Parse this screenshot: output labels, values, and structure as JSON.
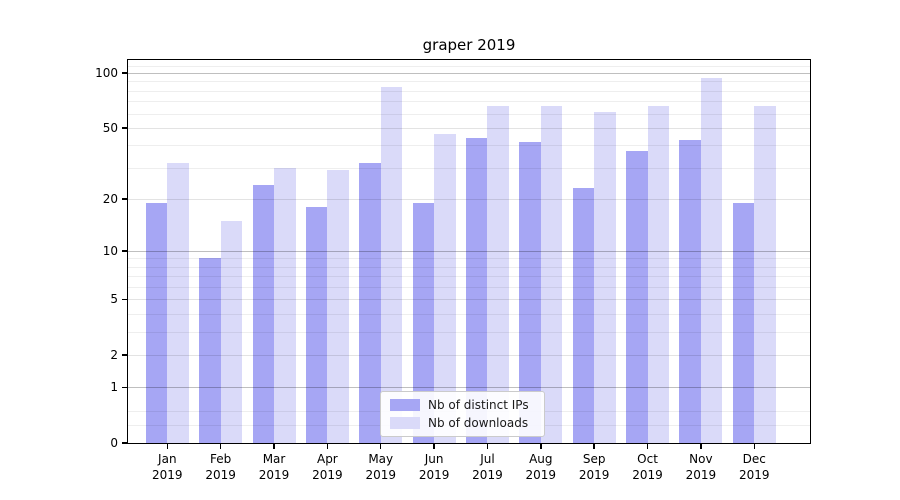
{
  "title": "graper 2019",
  "chart_data": {
    "type": "bar",
    "title": "graper 2019",
    "xlabel": "",
    "ylabel": "",
    "y_scale": "log1p",
    "ylim": [
      0,
      118
    ],
    "grid": true,
    "legend_position": "lower center",
    "y_ticks": [
      0,
      1,
      2,
      5,
      10,
      20,
      50,
      100
    ],
    "y_minor_gridlines": [
      0.25,
      0.5,
      3,
      4,
      6,
      7,
      8,
      9,
      30,
      40,
      60,
      70,
      80,
      90,
      110
    ],
    "categories": [
      "Jan",
      "Feb",
      "Mar",
      "Apr",
      "May",
      "Jun",
      "Jul",
      "Aug",
      "Sep",
      "Oct",
      "Nov",
      "Dec"
    ],
    "year": "2019",
    "series": [
      {
        "name": "Nb of distinct IPs",
        "color": "#a6a6f4",
        "values": [
          19,
          9,
          24,
          18,
          32,
          19,
          44,
          42,
          23,
          37,
          43,
          19
        ]
      },
      {
        "name": "Nb of downloads",
        "color": "#dadaf9",
        "values": [
          32,
          15,
          30,
          29,
          84,
          46,
          66,
          66,
          61,
          66,
          94,
          66
        ]
      }
    ]
  }
}
